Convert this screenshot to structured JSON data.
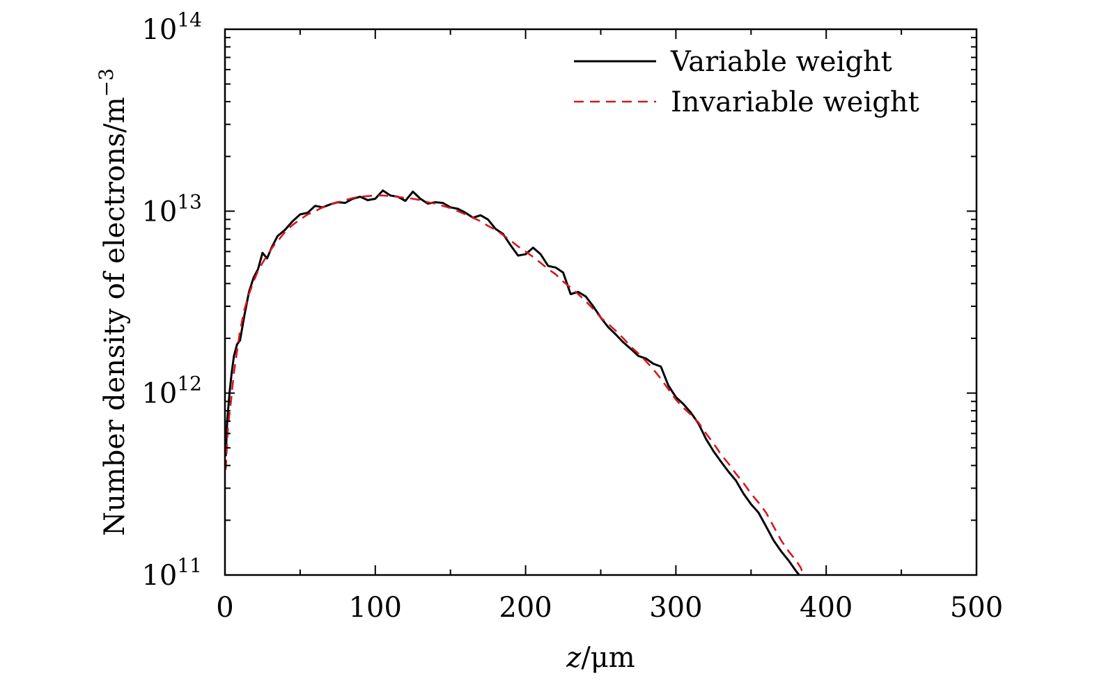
{
  "chart_data": {
    "type": "line",
    "title": "",
    "xlabel": {
      "var": "z",
      "unit": "/μm"
    },
    "ylabel": {
      "text": "Number density of electrons/m",
      "sup": "−3"
    },
    "xlim": [
      0,
      500
    ],
    "ylim": [
      100000000000.0,
      100000000000000.0
    ],
    "yscale": "log",
    "x_ticks": [
      0,
      100,
      200,
      300,
      400,
      500
    ],
    "x_tick_labels": [
      "0",
      "100",
      "200",
      "300",
      "400",
      "500"
    ],
    "x_minor_ticks": [
      50,
      150,
      250,
      350,
      450
    ],
    "y_ticks": [
      {
        "value": 100000000000.0,
        "base": "10",
        "exp": "11"
      },
      {
        "value": 1000000000000.0,
        "base": "10",
        "exp": "12"
      },
      {
        "value": 10000000000000.0,
        "base": "10",
        "exp": "13"
      },
      {
        "value": 100000000000000.0,
        "base": "10",
        "exp": "14"
      }
    ],
    "grid": false,
    "legend_position": "top-right",
    "series": [
      {
        "name": "Variable weight",
        "color": "#000000",
        "dash": "solid",
        "x": [
          0.5,
          1.5,
          3,
          4.5,
          6,
          8,
          10,
          13,
          16,
          19,
          22,
          25,
          28,
          31,
          35,
          40,
          45,
          50,
          55,
          60,
          65,
          70,
          75,
          80,
          85,
          90,
          95,
          100,
          105,
          110,
          115,
          120,
          125,
          130,
          135,
          140,
          145,
          150,
          155,
          160,
          165,
          170,
          175,
          180,
          185,
          190,
          195,
          200,
          205,
          210,
          215,
          220,
          225,
          230,
          235,
          240,
          245,
          250,
          255,
          260,
          265,
          270,
          275,
          280,
          285,
          290,
          295,
          300,
          305,
          310,
          315,
          320,
          325,
          330,
          335,
          340,
          345,
          350,
          355,
          360,
          365,
          370,
          375,
          380,
          382
        ],
        "y": [
          450000000000.0,
          700000000000.0,
          1000000000000.0,
          1300000000000.0,
          1600000000000.0,
          1850000000000.0,
          1950000000000.0,
          2700000000000.0,
          3600000000000.0,
          4300000000000.0,
          4800000000000.0,
          5900000000000.0,
          5500000000000.0,
          6300000000000.0,
          7300000000000.0,
          7900000000000.0,
          8800000000000.0,
          9600000000000.0,
          9800000000000.0,
          10700000000000.0,
          10500000000000.0,
          10900000000000.0,
          11200000000000.0,
          11100000000000.0,
          11700000000000.0,
          12000000000000.0,
          11500000000000.0,
          11700000000000.0,
          13000000000000.0,
          12200000000000.0,
          12000000000000.0,
          11400000000000.0,
          12800000000000.0,
          11700000000000.0,
          11000000000000.0,
          11200000000000.0,
          11100000000000.0,
          10500000000000.0,
          10300000000000.0,
          9800000000000.0,
          9200000000000.0,
          9500000000000.0,
          9000000000000.0,
          8000000000000.0,
          7500000000000.0,
          6500000000000.0,
          5700000000000.0,
          5800000000000.0,
          6300000000000.0,
          5800000000000.0,
          5000000000000.0,
          4900000000000.0,
          4600000000000.0,
          3500000000000.0,
          3600000000000.0,
          3400000000000.0,
          3000000000000.0,
          2600000000000.0,
          2300000000000.0,
          2100000000000.0,
          1900000000000.0,
          1750000000000.0,
          1600000000000.0,
          1550000000000.0,
          1450000000000.0,
          1400000000000.0,
          1100000000000.0,
          950000000000.0,
          870000000000.0,
          780000000000.0,
          680000000000.0,
          560000000000.0,
          480000000000.0,
          420000000000.0,
          370000000000.0,
          330000000000.0,
          280000000000.0,
          245000000000.0,
          220000000000.0,
          185000000000.0,
          155000000000.0,
          135000000000.0,
          120000000000.0,
          105000000000.0,
          100000000000.0
        ]
      },
      {
        "name": "Invariable weight",
        "color": "#d6181f",
        "dash": "dashed",
        "x": [
          0.5,
          2,
          4,
          6,
          8,
          10,
          13,
          16,
          19,
          22,
          25,
          28,
          32,
          36,
          40,
          45,
          50,
          55,
          60,
          65,
          70,
          75,
          80,
          85,
          90,
          95,
          100,
          105,
          110,
          115,
          120,
          125,
          130,
          135,
          140,
          145,
          150,
          155,
          160,
          165,
          170,
          175,
          180,
          185,
          190,
          195,
          200,
          205,
          210,
          215,
          220,
          225,
          230,
          235,
          240,
          245,
          250,
          255,
          260,
          265,
          270,
          275,
          280,
          285,
          290,
          295,
          300,
          305,
          310,
          315,
          320,
          325,
          330,
          335,
          340,
          345,
          350,
          355,
          360,
          365,
          370,
          375,
          380,
          383,
          385
        ],
        "y": [
          380000000000.0,
          650000000000.0,
          900000000000.0,
          1300000000000.0,
          1700000000000.0,
          2200000000000.0,
          2900000000000.0,
          3500000000000.0,
          4100000000000.0,
          4700000000000.0,
          5200000000000.0,
          5700000000000.0,
          6400000000000.0,
          7000000000000.0,
          7700000000000.0,
          8400000000000.0,
          9000000000000.0,
          9600000000000.0,
          10000000000000.0,
          10500000000000.0,
          10900000000000.0,
          11200000000000.0,
          11500000000000.0,
          11800000000000.0,
          12000000000000.0,
          12100000000000.0,
          12200000000000.0,
          12200000000000.0,
          12100000000000.0,
          12000000000000.0,
          11800000000000.0,
          11700000000000.0,
          11500000000000.0,
          11200000000000.0,
          11000000000000.0,
          10700000000000.0,
          10400000000000.0,
          10000000000000.0,
          9600000000000.0,
          9200000000000.0,
          8800000000000.0,
          8300000000000.0,
          7900000000000.0,
          7400000000000.0,
          6900000000000.0,
          6400000000000.0,
          6000000000000.0,
          5600000000000.0,
          5200000000000.0,
          4800000000000.0,
          4500000000000.0,
          4100000000000.0,
          3800000000000.0,
          3500000000000.0,
          3200000000000.0,
          2900000000000.0,
          2600000000000.0,
          2400000000000.0,
          2200000000000.0,
          2000000000000.0,
          1800000000000.0,
          1650000000000.0,
          1500000000000.0,
          1350000000000.0,
          1200000000000.0,
          1050000000000.0,
          920000000000.0,
          830000000000.0,
          760000000000.0,
          690000000000.0,
          600000000000.0,
          530000000000.0,
          460000000000.0,
          410000000000.0,
          360000000000.0,
          320000000000.0,
          280000000000.0,
          250000000000.0,
          220000000000.0,
          185000000000.0,
          155000000000.0,
          135000000000.0,
          120000000000.0,
          110000000000.0,
          100000000000.0
        ]
      }
    ]
  }
}
